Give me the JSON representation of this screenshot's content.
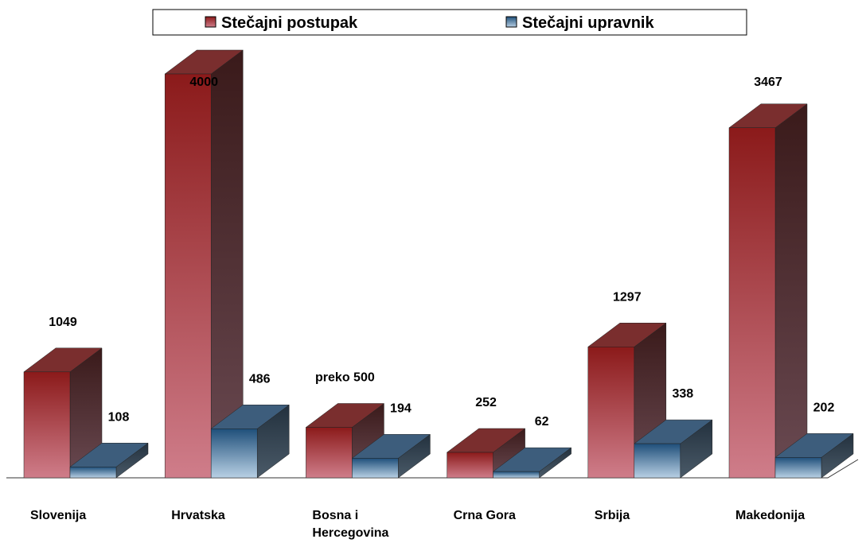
{
  "chart_data": {
    "type": "bar3d",
    "categories": [
      "Slovenija",
      "Hrvatska",
      "Bosna i Hercegovina",
      "Crna Gora",
      "Srbija",
      "Makedonija"
    ],
    "series": [
      {
        "name": "Stečajni postupak",
        "color": "#8b1a1a",
        "values": [
          1049,
          4000,
          500,
          252,
          1297,
          3467
        ],
        "value_labels": [
          "1049",
          "4000",
          "preko 500",
          "252",
          "1297",
          "3467"
        ]
      },
      {
        "name": "Stečajni upravnik",
        "color": "#1f4f7a",
        "values": [
          108,
          486,
          194,
          62,
          338,
          202
        ]
      }
    ]
  }
}
